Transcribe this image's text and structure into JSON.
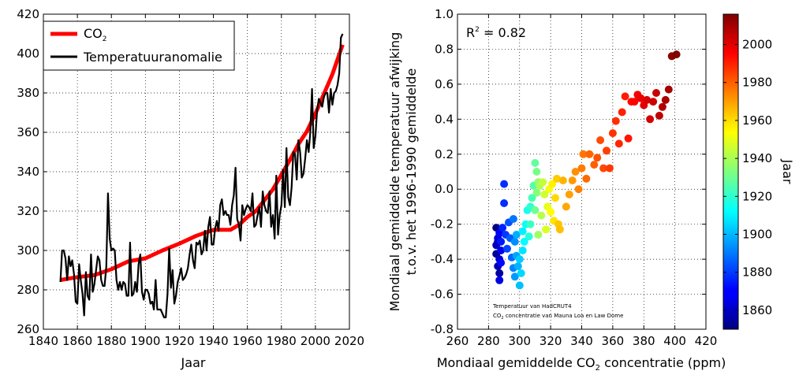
{
  "chart_data": [
    {
      "type": "line",
      "xlabel": "Jaar",
      "ylabel": "",
      "xlim": [
        1840,
        2020
      ],
      "ylim": [
        260,
        420
      ],
      "xticks": [
        1840,
        1860,
        1880,
        1900,
        1920,
        1940,
        1960,
        1980,
        2000,
        2020
      ],
      "yticks": [
        260,
        280,
        300,
        320,
        340,
        360,
        380,
        400,
        420
      ],
      "grid": true,
      "legend": "top-left",
      "series": [
        {
          "name": "CO",
          "name_sub": "2",
          "color": "#ff0000",
          "x": [
            1850,
            1860,
            1870,
            1880,
            1890,
            1900,
            1910,
            1920,
            1930,
            1940,
            1950,
            1955,
            1960,
            1965,
            1970,
            1975,
            1980,
            1985,
            1990,
            1995,
            2000,
            2005,
            2010,
            2016
          ],
          "y": [
            285,
            286.5,
            287.5,
            290.5,
            294.5,
            296,
            300,
            303.5,
            307.5,
            310.5,
            310.5,
            313,
            317,
            320,
            325.5,
            331,
            338.5,
            346,
            354,
            360.5,
            369.5,
            379.5,
            389.5,
            404.5
          ]
        },
        {
          "name": "Temperatuuranomalie",
          "color": "#000000",
          "x": [
            1850,
            1851,
            1852,
            1853,
            1854,
            1855,
            1856,
            1857,
            1858,
            1859,
            1860,
            1861,
            1862,
            1863,
            1864,
            1865,
            1866,
            1867,
            1868,
            1869,
            1870,
            1871,
            1872,
            1873,
            1874,
            1875,
            1876,
            1877,
            1878,
            1879,
            1880,
            1881,
            1882,
            1883,
            1884,
            1885,
            1886,
            1887,
            1888,
            1889,
            1890,
            1891,
            1892,
            1893,
            1894,
            1895,
            1896,
            1897,
            1898,
            1899,
            1900,
            1901,
            1902,
            1903,
            1904,
            1905,
            1906,
            1907,
            1908,
            1909,
            1910,
            1911,
            1912,
            1913,
            1914,
            1915,
            1916,
            1917,
            1918,
            1919,
            1920,
            1921,
            1922,
            1923,
            1924,
            1925,
            1926,
            1927,
            1928,
            1929,
            1930,
            1931,
            1932,
            1933,
            1934,
            1935,
            1936,
            1937,
            1938,
            1939,
            1940,
            1941,
            1942,
            1943,
            1944,
            1945,
            1946,
            1947,
            1948,
            1949,
            1950,
            1951,
            1952,
            1953,
            1954,
            1955,
            1956,
            1957,
            1958,
            1959,
            1960,
            1961,
            1962,
            1963,
            1964,
            1965,
            1966,
            1967,
            1968,
            1969,
            1970,
            1971,
            1972,
            1973,
            1974,
            1975,
            1976,
            1977,
            1978,
            1979,
            1980,
            1981,
            1982,
            1983,
            1984,
            1985,
            1986,
            1987,
            1988,
            1989,
            1990,
            1991,
            1992,
            1993,
            1994,
            1995,
            1996,
            1997,
            1998,
            1999,
            2000,
            2001,
            2002,
            2003,
            2004,
            2005,
            2006,
            2007,
            2008,
            2009,
            2010,
            2011,
            2012,
            2013,
            2014,
            2015,
            2016
          ],
          "y": [
            284,
            300,
            300,
            296,
            285,
            297,
            292,
            295,
            288,
            274,
            273,
            293,
            285,
            278,
            267,
            289,
            277,
            275,
            298,
            279,
            283,
            290,
            297,
            295,
            285,
            282,
            282,
            292,
            329,
            306,
            300,
            301,
            300,
            285,
            280,
            284,
            280,
            284,
            283,
            277,
            277,
            304,
            277,
            278,
            284,
            279,
            293,
            298,
            279,
            275,
            280,
            280,
            278,
            273,
            274,
            270,
            285,
            270,
            270,
            270,
            268,
            266,
            266,
            278,
            301,
            281,
            290,
            273,
            277,
            284,
            287,
            291,
            285,
            286,
            288,
            291,
            298,
            303,
            295,
            291,
            304,
            303,
            305,
            298,
            300,
            310,
            300,
            312,
            317,
            303,
            303,
            311,
            315,
            310,
            323,
            326,
            318,
            320,
            318,
            318,
            313,
            323,
            328,
            342,
            316,
            313,
            305,
            323,
            318,
            321,
            323,
            322,
            320,
            329,
            312,
            313,
            318,
            322,
            312,
            330,
            323,
            320,
            319,
            330,
            312,
            318,
            306,
            338,
            308,
            318,
            323,
            341,
            322,
            352,
            327,
            323,
            332,
            350,
            349,
            336,
            356,
            350,
            337,
            339,
            347,
            356,
            350,
            360,
            382,
            352,
            358,
            371,
            377,
            375,
            373,
            378,
            380,
            380,
            370,
            382,
            374,
            380,
            381,
            384,
            390,
            408,
            410
          ]
        }
      ]
    },
    {
      "type": "scatter",
      "xlabel": "Mondiaal gemiddelde CO",
      "xlabel_sub": "2",
      "xlabel_suffix": " concentratie (ppm)",
      "ylabel_line1": "Mondiaal gemiddelde temperatuur afwijking",
      "ylabel_line2": "t.o.v. het 1996-1990 gemiddelde",
      "xlim": [
        260,
        420
      ],
      "ylim": [
        -0.8,
        1.0
      ],
      "xticks": [
        260,
        280,
        300,
        320,
        340,
        360,
        380,
        400,
        420
      ],
      "yticks": [
        -0.8,
        -0.6,
        -0.4,
        -0.2,
        0.0,
        0.2,
        0.4,
        0.6,
        0.8,
        1.0
      ],
      "grid": true,
      "r2_label": "R",
      "r2_sup": "2",
      "r2_value": " = 0.82",
      "note_line1": "Temperatuur van HadCRUT4",
      "note_line2_pre": "CO",
      "note_line2_sub": "2",
      "note_line2_post": " concentratie van Mauna Loa en Law Dome",
      "colorbar": {
        "label": "Jaar",
        "range": [
          1850,
          2016
        ],
        "ticks": [
          1860,
          1880,
          1900,
          1920,
          1940,
          1960,
          1980,
          2000
        ]
      },
      "points": [
        {
          "x": 285,
          "y": -0.22,
          "year": 1850
        },
        {
          "x": 286,
          "y": -0.3,
          "year": 1852
        },
        {
          "x": 285,
          "y": -0.37,
          "year": 1854
        },
        {
          "x": 287,
          "y": -0.48,
          "year": 1856
        },
        {
          "x": 286,
          "y": -0.44,
          "year": 1858
        },
        {
          "x": 285,
          "y": -0.32,
          "year": 1860
        },
        {
          "x": 287,
          "y": -0.4,
          "year": 1862
        },
        {
          "x": 286,
          "y": -0.28,
          "year": 1864
        },
        {
          "x": 287,
          "y": -0.52,
          "year": 1866
        },
        {
          "x": 288,
          "y": -0.35,
          "year": 1868
        },
        {
          "x": 287,
          "y": -0.25,
          "year": 1870
        },
        {
          "x": 288,
          "y": -0.42,
          "year": 1872
        },
        {
          "x": 288,
          "y": -0.3,
          "year": 1874
        },
        {
          "x": 289,
          "y": -0.22,
          "year": 1876
        },
        {
          "x": 290,
          "y": -0.08,
          "year": 1878
        },
        {
          "x": 290,
          "y": 0.03,
          "year": 1878
        },
        {
          "x": 291,
          "y": -0.26,
          "year": 1880
        },
        {
          "x": 292,
          "y": -0.34,
          "year": 1882
        },
        {
          "x": 293,
          "y": -0.19,
          "year": 1884
        },
        {
          "x": 294,
          "y": -0.28,
          "year": 1886
        },
        {
          "x": 295,
          "y": -0.39,
          "year": 1888
        },
        {
          "x": 296,
          "y": -0.17,
          "year": 1890
        },
        {
          "x": 296,
          "y": -0.45,
          "year": 1892
        },
        {
          "x": 297,
          "y": -0.3,
          "year": 1894
        },
        {
          "x": 297,
          "y": -0.5,
          "year": 1896
        },
        {
          "x": 298,
          "y": -0.38,
          "year": 1898
        },
        {
          "x": 298,
          "y": -0.26,
          "year": 1899
        },
        {
          "x": 299,
          "y": -0.44,
          "year": 1900
        },
        {
          "x": 300,
          "y": -0.55,
          "year": 1902
        },
        {
          "x": 300,
          "y": -0.4,
          "year": 1904
        },
        {
          "x": 301,
          "y": -0.48,
          "year": 1906
        },
        {
          "x": 302,
          "y": -0.35,
          "year": 1908
        },
        {
          "x": 302,
          "y": -0.24,
          "year": 1910
        },
        {
          "x": 303,
          "y": -0.3,
          "year": 1912
        },
        {
          "x": 304,
          "y": -0.2,
          "year": 1914
        },
        {
          "x": 305,
          "y": -0.12,
          "year": 1916
        },
        {
          "x": 306,
          "y": -0.27,
          "year": 1918
        },
        {
          "x": 307,
          "y": -0.1,
          "year": 1920
        },
        {
          "x": 307,
          "y": -0.2,
          "year": 1922
        },
        {
          "x": 308,
          "y": -0.05,
          "year": 1924
        },
        {
          "x": 309,
          "y": 0.02,
          "year": 1926
        },
        {
          "x": 310,
          "y": 0.15,
          "year": 1928
        },
        {
          "x": 310,
          "y": -0.12,
          "year": 1930
        },
        {
          "x": 311,
          "y": 0.1,
          "year": 1932
        },
        {
          "x": 311,
          "y": -0.02,
          "year": 1934
        },
        {
          "x": 312,
          "y": 0.04,
          "year": 1936
        },
        {
          "x": 312,
          "y": -0.26,
          "year": 1938
        },
        {
          "x": 313,
          "y": 0.02,
          "year": 1940
        },
        {
          "x": 314,
          "y": -0.15,
          "year": 1942
        },
        {
          "x": 315,
          "y": 0.04,
          "year": 1944
        },
        {
          "x": 316,
          "y": -0.03,
          "year": 1946
        },
        {
          "x": 317,
          "y": -0.23,
          "year": 1948
        },
        {
          "x": 318,
          "y": -0.1,
          "year": 1950
        },
        {
          "x": 319,
          "y": 0.0,
          "year": 1952
        },
        {
          "x": 320,
          "y": -0.13,
          "year": 1954
        },
        {
          "x": 321,
          "y": 0.03,
          "year": 1956
        },
        {
          "x": 322,
          "y": -0.18,
          "year": 1958
        },
        {
          "x": 323,
          "y": -0.05,
          "year": 1960
        },
        {
          "x": 324,
          "y": 0.06,
          "year": 1962
        },
        {
          "x": 325,
          "y": -0.2,
          "year": 1963
        },
        {
          "x": 326,
          "y": -0.23,
          "year": 1964
        },
        {
          "x": 328,
          "y": 0.05,
          "year": 1966
        },
        {
          "x": 330,
          "y": -0.1,
          "year": 1968
        },
        {
          "x": 332,
          "y": -0.03,
          "year": 1969
        },
        {
          "x": 334,
          "y": 0.05,
          "year": 1970
        },
        {
          "x": 336,
          "y": 0.1,
          "year": 1972
        },
        {
          "x": 338,
          "y": 0.0,
          "year": 1974
        },
        {
          "x": 340,
          "y": 0.12,
          "year": 1975
        },
        {
          "x": 341,
          "y": 0.2,
          "year": 1976
        },
        {
          "x": 343,
          "y": 0.06,
          "year": 1978
        },
        {
          "x": 345,
          "y": 0.2,
          "year": 1979
        },
        {
          "x": 348,
          "y": 0.14,
          "year": 1980
        },
        {
          "x": 350,
          "y": 0.18,
          "year": 1982
        },
        {
          "x": 352,
          "y": 0.28,
          "year": 1983
        },
        {
          "x": 354,
          "y": 0.12,
          "year": 1984
        },
        {
          "x": 356,
          "y": 0.22,
          "year": 1985
        },
        {
          "x": 358,
          "y": 0.12,
          "year": 1986
        },
        {
          "x": 360,
          "y": 0.32,
          "year": 1987
        },
        {
          "x": 362,
          "y": 0.39,
          "year": 1988
        },
        {
          "x": 364,
          "y": 0.26,
          "year": 1989
        },
        {
          "x": 366,
          "y": 0.44,
          "year": 1990
        },
        {
          "x": 368,
          "y": 0.53,
          "year": 1991
        },
        {
          "x": 370,
          "y": 0.29,
          "year": 1992
        },
        {
          "x": 372,
          "y": 0.5,
          "year": 1994
        },
        {
          "x": 374,
          "y": 0.5,
          "year": 1995
        },
        {
          "x": 376,
          "y": 0.54,
          "year": 1997
        },
        {
          "x": 378,
          "y": 0.52,
          "year": 1998
        },
        {
          "x": 380,
          "y": 0.48,
          "year": 2000
        },
        {
          "x": 382,
          "y": 0.51,
          "year": 2001
        },
        {
          "x": 384,
          "y": 0.4,
          "year": 2002
        },
        {
          "x": 386,
          "y": 0.5,
          "year": 2003
        },
        {
          "x": 388,
          "y": 0.55,
          "year": 2004
        },
        {
          "x": 390,
          "y": 0.42,
          "year": 2006
        },
        {
          "x": 392,
          "y": 0.47,
          "year": 2008
        },
        {
          "x": 394,
          "y": 0.51,
          "year": 2009
        },
        {
          "x": 396,
          "y": 0.57,
          "year": 2010
        },
        {
          "x": 398,
          "y": 0.76,
          "year": 2014
        },
        {
          "x": 401,
          "y": 0.77,
          "year": 2016
        }
      ]
    }
  ]
}
